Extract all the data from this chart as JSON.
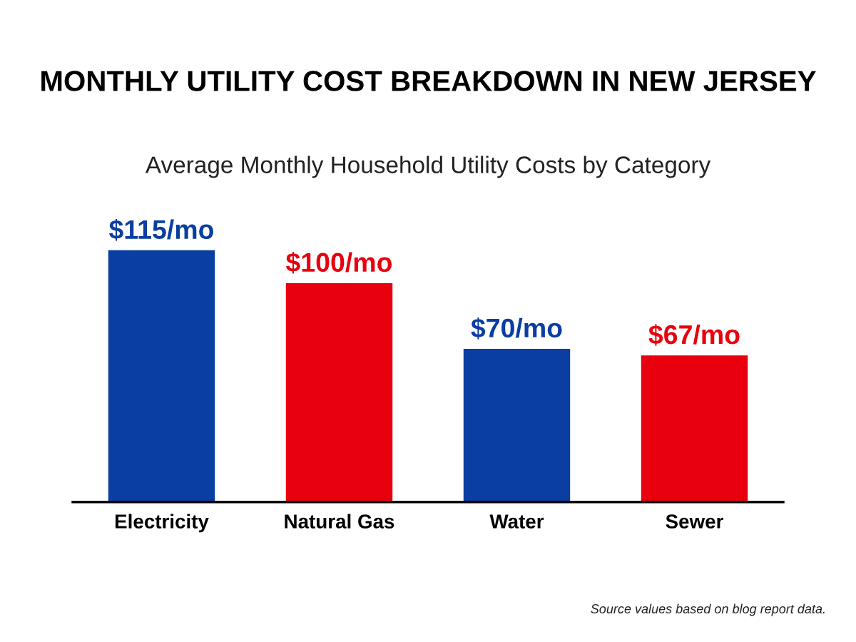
{
  "chart_data": {
    "type": "bar",
    "title": "MONTHLY UTILITY COST BREAKDOWN IN NEW JERSEY",
    "subtitle": "Average Monthly Household Utility Costs by Category",
    "categories": [
      "Electricity",
      "Natural Gas",
      "Water",
      "Sewer"
    ],
    "values": [
      115,
      100,
      70,
      67
    ],
    "colors": [
      "#0a3ea0",
      "#e8000e",
      "#0a3ea0",
      "#e8000e"
    ],
    "value_labels": [
      "$115/mo",
      "$100/mo",
      "$70/mo",
      "$67/mo"
    ],
    "annotations": [
      "Source values based on blog report data."
    ],
    "grid": false,
    "legend": false
  }
}
